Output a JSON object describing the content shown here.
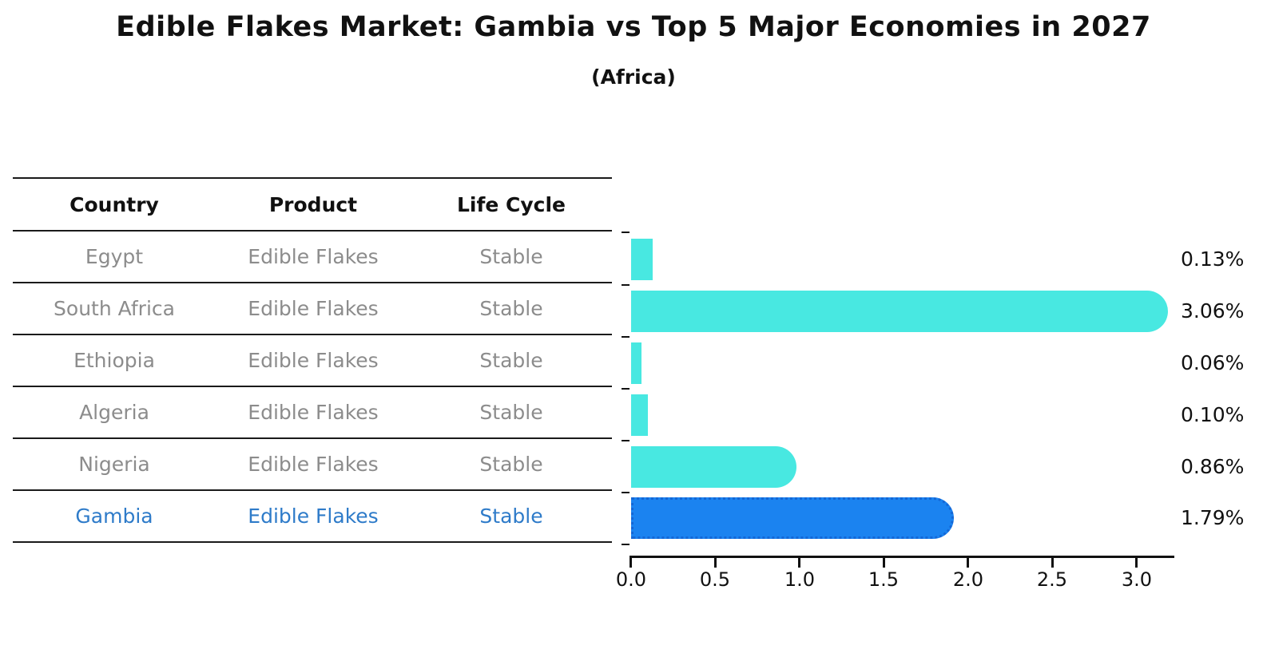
{
  "header": {
    "title": "Edible Flakes Market: Gambia vs Top 5 Major Economies in 2027",
    "subtitle": "(Africa)"
  },
  "table": {
    "columns": [
      "Country",
      "Product",
      "Life Cycle"
    ],
    "rows": [
      {
        "country": "Egypt",
        "product": "Edible Flakes",
        "life_cycle": "Stable",
        "highlight": false
      },
      {
        "country": "South Africa",
        "product": "Edible Flakes",
        "life_cycle": "Stable",
        "highlight": false
      },
      {
        "country": "Ethiopia",
        "product": "Edible Flakes",
        "life_cycle": "Stable",
        "highlight": false
      },
      {
        "country": "Algeria",
        "product": "Edible Flakes",
        "life_cycle": "Stable",
        "highlight": false
      },
      {
        "country": "Nigeria",
        "product": "Edible Flakes",
        "life_cycle": "Stable",
        "highlight": false
      },
      {
        "country": "Gambia",
        "product": "Edible Flakes",
        "life_cycle": "Stable",
        "highlight": true
      }
    ]
  },
  "chart_data": {
    "type": "bar",
    "orientation": "horizontal",
    "title": "Edible Flakes Market: Gambia vs Top 5 Major Economies in 2027",
    "subtitle": "(Africa)",
    "categories": [
      "Egypt",
      "South Africa",
      "Ethiopia",
      "Algeria",
      "Nigeria",
      "Gambia"
    ],
    "values": [
      0.13,
      3.06,
      0.06,
      0.1,
      0.86,
      1.79
    ],
    "value_labels": [
      "0.13%",
      "3.06%",
      "0.06%",
      "0.10%",
      "0.86%",
      "1.79%"
    ],
    "xlabel": "",
    "ylabel": "",
    "xlim": [
      0,
      3.22
    ],
    "x_ticks": [
      "0.0",
      "0.5",
      "1.0",
      "1.5",
      "2.0",
      "2.5",
      "3.0"
    ],
    "grid": false,
    "legend": false,
    "highlight_index": 5,
    "bar_color": "#48E8E1",
    "highlight_color": "#1B83F0",
    "highlight_edge_color": "#1467D6",
    "highlight_text_color": "#2E7BC9"
  }
}
